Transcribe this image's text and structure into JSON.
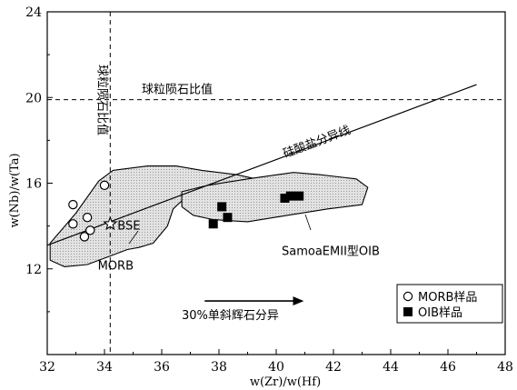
{
  "chart_data": {
    "type": "scatter",
    "xlabel": "w(Zr)/w(Hf)",
    "ylabel": "w(Nb)/w(Ta)",
    "xlim": [
      32,
      48
    ],
    "ylim": [
      8,
      24
    ],
    "x_ticks": [
      "32",
      "34",
      "36",
      "38",
      "40",
      "42",
      "44",
      "46",
      "48"
    ],
    "y_ticks": [
      "12",
      "16",
      "20",
      "24"
    ],
    "grid": false,
    "legend_position": "bottom-right",
    "legend": [
      {
        "label": "MORB样品",
        "marker": "open-circle"
      },
      {
        "label": "OIB样品",
        "marker": "filled-square"
      }
    ],
    "series": [
      {
        "name": "MORB样品",
        "marker": "open-circle",
        "points": [
          [
            32.9,
            15.0
          ],
          [
            33.4,
            14.4
          ],
          [
            32.9,
            14.1
          ],
          [
            33.5,
            13.8
          ],
          [
            33.3,
            13.5
          ],
          [
            34.0,
            15.9
          ]
        ]
      },
      {
        "name": "OIB样品",
        "marker": "filled-square",
        "points": [
          [
            37.8,
            14.1
          ],
          [
            38.1,
            14.9
          ],
          [
            38.3,
            14.4
          ],
          [
            40.3,
            15.3
          ],
          [
            40.5,
            15.4
          ],
          [
            40.8,
            15.4
          ]
        ]
      }
    ],
    "reference_lines": [
      {
        "label": "球粒陨石比值",
        "orientation": "horizontal",
        "value": 19.9,
        "style": "dashed"
      },
      {
        "label": "球粒陨石比值",
        "orientation": "vertical",
        "value": 34.2,
        "style": "dashed"
      },
      {
        "label": "硅酸盐分异线",
        "style": "solid",
        "from": [
          32,
          13.1
        ],
        "to": [
          47,
          20.6
        ]
      }
    ],
    "fields": [
      {
        "label": "MORB",
        "polygon": [
          [
            32.1,
            12.4
          ],
          [
            32.1,
            13.2
          ],
          [
            33.0,
            14.6
          ],
          [
            33.8,
            16.1
          ],
          [
            34.3,
            16.6
          ],
          [
            35.5,
            16.8
          ],
          [
            36.5,
            16.8
          ],
          [
            37.4,
            16.6
          ],
          [
            38.6,
            16.4
          ],
          [
            39.3,
            16.2
          ],
          [
            38.5,
            15.8
          ],
          [
            37.5,
            15.6
          ],
          [
            36.8,
            15.3
          ],
          [
            36.4,
            14.8
          ],
          [
            36.2,
            14.0
          ],
          [
            35.7,
            13.2
          ],
          [
            35.2,
            13.0
          ],
          [
            34.8,
            12.9
          ],
          [
            34.2,
            12.6
          ],
          [
            33.4,
            12.2
          ],
          [
            32.6,
            12.1
          ]
        ]
      },
      {
        "label": "SamoaEMII型OIB",
        "polygon": [
          [
            36.7,
            15.6
          ],
          [
            37.6,
            15.9
          ],
          [
            39.0,
            16.2
          ],
          [
            40.6,
            16.5
          ],
          [
            41.5,
            16.4
          ],
          [
            42.8,
            16.2
          ],
          [
            43.2,
            15.8
          ],
          [
            43.0,
            15.0
          ],
          [
            41.8,
            14.8
          ],
          [
            40.4,
            14.5
          ],
          [
            39.0,
            14.2
          ],
          [
            37.8,
            14.3
          ],
          [
            37.1,
            14.5
          ],
          [
            36.7,
            14.9
          ]
        ]
      }
    ],
    "annotations": [
      {
        "text": "BSE",
        "marker": "star",
        "at": [
          34.2,
          14.1
        ]
      },
      {
        "text": "MORB",
        "at": [
          34.4,
          12.4
        ]
      },
      {
        "text": "SamoaEMII型OIB",
        "at": [
          40.0,
          12.9
        ]
      },
      {
        "text": "30%单斜辉石分异",
        "arrow_from": [
          37.5,
          10.5
        ],
        "arrow_to": [
          40.9,
          10.5
        ]
      }
    ]
  }
}
